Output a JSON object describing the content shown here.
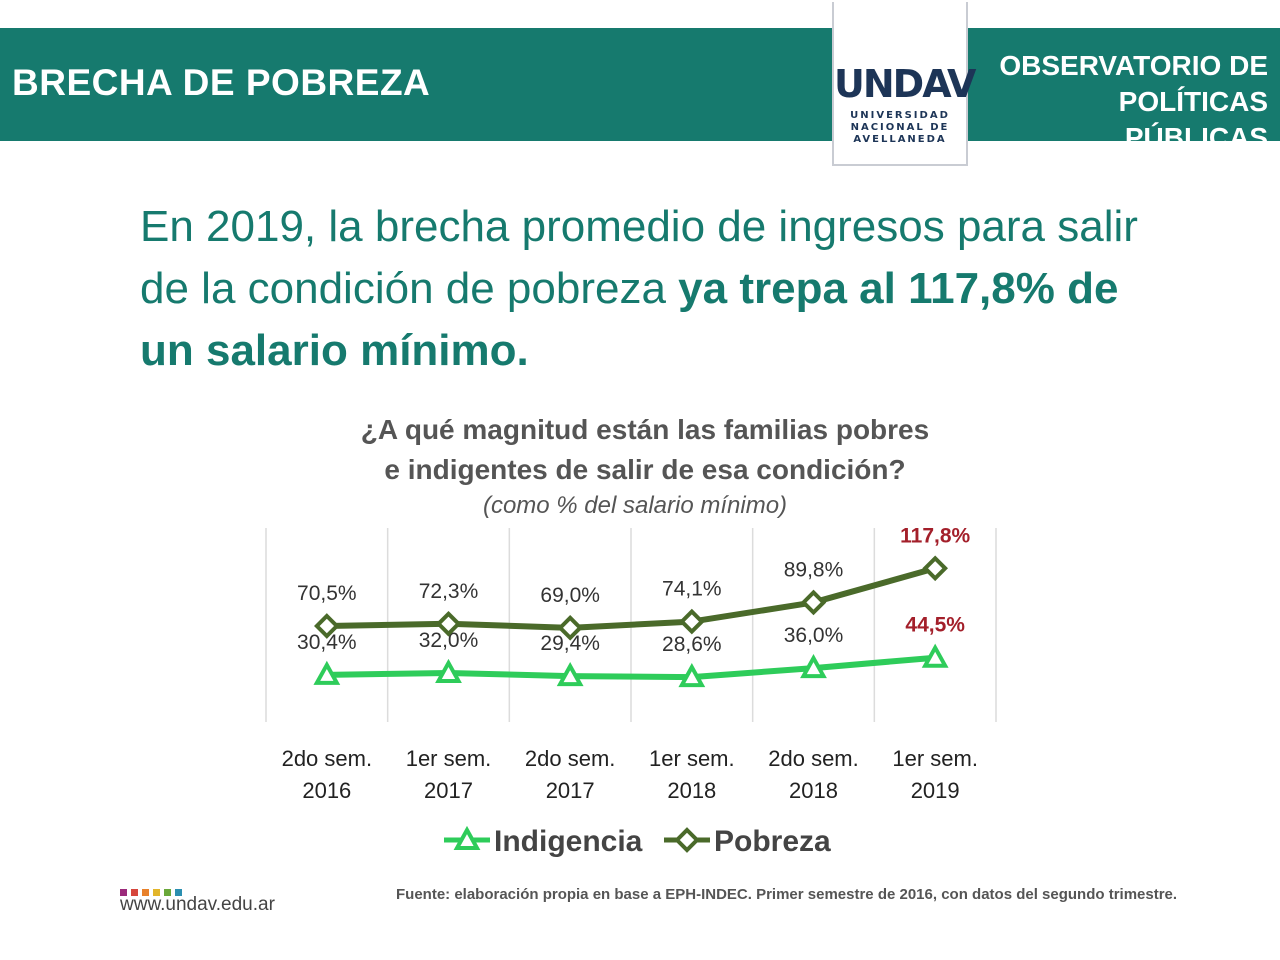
{
  "header": {
    "title": "BRECHA DE POBREZA",
    "logo_mark": "UNDAV",
    "logo_sub": [
      "UNIVERSIDAD",
      "NACIONAL DE",
      "AVELLANEDA"
    ],
    "right_line1": "OBSERVATORIO DE",
    "right_line2": "POLÍTICAS PÚBLICAS"
  },
  "headline": {
    "part1": "En 2019, la brecha promedio de ingresos para salir de la condición de pobreza ",
    "bold": "ya trepa al 117,8% de un salario mínimo."
  },
  "chart_data": {
    "type": "line",
    "title_line1": "¿A qué magnitud están las familias pobres",
    "title_line2": "e indigentes  de salir de esa condición?",
    "subtitle": "(como % del salario mínimo)",
    "categories": [
      "2do sem.\n2016",
      "1er sem.\n2017",
      "2do sem.\n2017",
      "1er sem.\n2018",
      "2do sem.\n2018",
      "1er sem.\n2019"
    ],
    "series": [
      {
        "name": "Indigencia",
        "values": [
          30.4,
          32.0,
          29.4,
          28.6,
          36.0,
          44.5
        ],
        "labels": [
          "30,4%",
          "32,0%",
          "29,4%",
          "28,6%",
          "36,0%",
          "44,5%"
        ],
        "color": "#2ecc5a",
        "marker": "triangle"
      },
      {
        "name": "Pobreza",
        "values": [
          70.5,
          72.3,
          69.0,
          74.1,
          89.8,
          117.8
        ],
        "labels": [
          "70,5%",
          "72,3%",
          "69,0%",
          "74,1%",
          "89,8%",
          "117,8%"
        ],
        "color": "#4a6a2a",
        "marker": "diamond"
      }
    ],
    "highlight_color": "#a31f2a",
    "grid": "vertical",
    "legend": "bottom"
  },
  "footer": {
    "url": "www.undav.edu.ar",
    "source": "Fuente: elaboración propia en base a EPH-INDEC. Primer semestre de 2016, con datos del segundo trimestre.",
    "dot_colors": [
      "#9b2a7a",
      "#d6463c",
      "#e8812b",
      "#e2b52a",
      "#6aa83a",
      "#2b8fb0"
    ]
  }
}
